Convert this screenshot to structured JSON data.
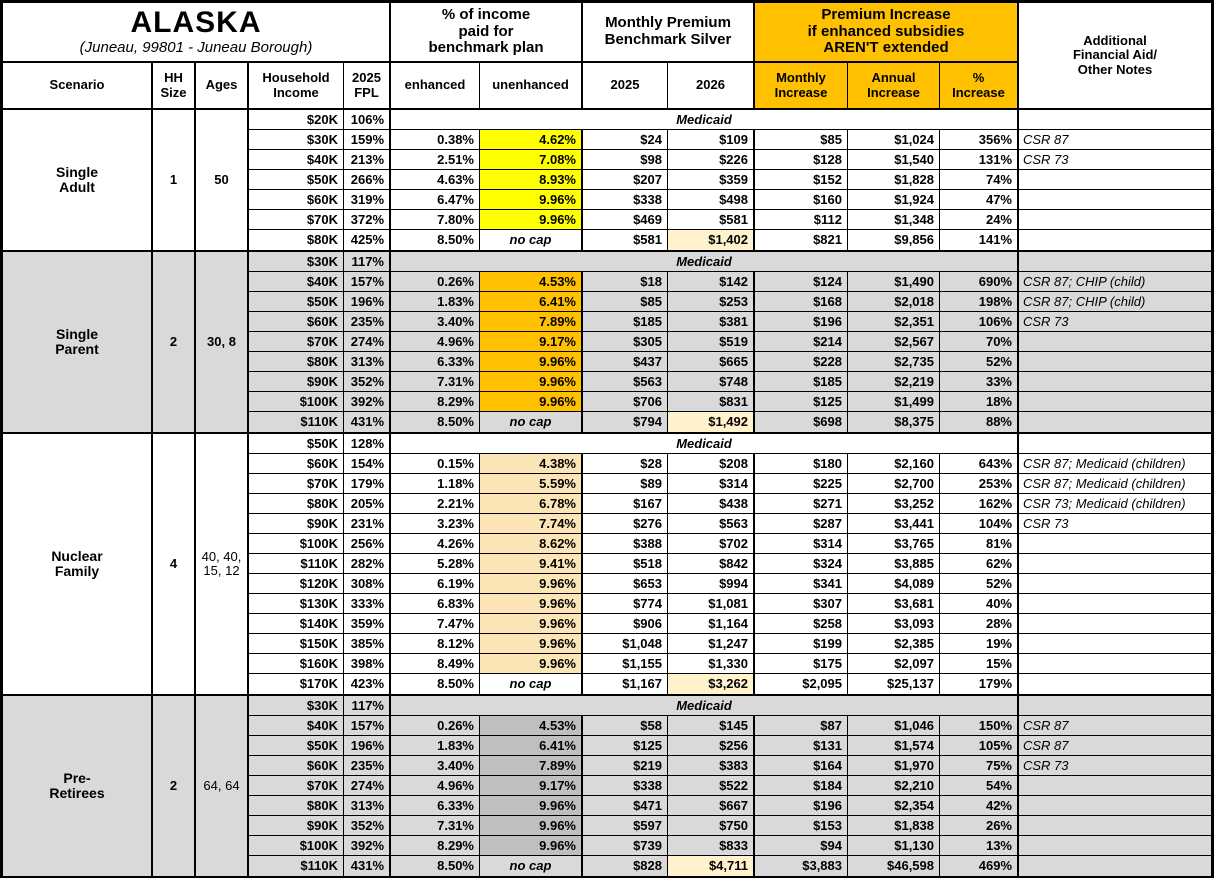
{
  "title": {
    "main": "ALASKA",
    "subtitle": "(Juneau, 99801 - Juneau Borough)"
  },
  "columns": {
    "scenario": "Scenario",
    "hh_size": "HH\nSize",
    "ages": "Ages",
    "household_income": "Household\nIncome",
    "fpl_2025": "2025\nFPL",
    "pct_income_group": "% of income\npaid for\nbenchmark plan",
    "enhanced": "enhanced",
    "unenhanced": "unenhanced",
    "premium_group": "Monthly Premium\nBenchmark Silver",
    "year_2025": "2025",
    "year_2026": "2026",
    "increase_group": "Premium Increase\nif enhanced subsidies\nAREN'T extended",
    "monthly_increase": "Monthly\nIncrease",
    "annual_increase": "Annual\nIncrease",
    "pct_increase": "%\nIncrease",
    "notes": "Additional\nFinancial Aid/\nOther Notes"
  },
  "labels": {
    "medicaid": "Medicaid",
    "no_cap": "no cap"
  },
  "colors": {
    "header_accent": "#FFC000",
    "band_white": "#FFFFFF",
    "band_gray": "#D9D9D9",
    "single_adult_highlight": "#FFFF00",
    "single_parent_highlight": "#FFC000",
    "nuclear_family_highlight": "#FBE5B6",
    "pre_retirees_highlight": "#BFBFBF",
    "no_cap_2026_highlight": "#FFF2CC"
  },
  "sections": [
    {
      "id": "single-adult",
      "scenario": "Single\nAdult",
      "hh_size": "1",
      "ages": "50",
      "ages_bold": true,
      "band": "#FFFFFF",
      "highlight": "#FFFF00",
      "rows": [
        {
          "income": "$20K",
          "fpl": "106%",
          "medicaid": true
        },
        {
          "income": "$30K",
          "fpl": "159%",
          "enhanced": "0.38%",
          "unenhanced": "4.62%",
          "premium_2025": "$24",
          "premium_2026": "$109",
          "monthly_increase": "$85",
          "annual_increase": "$1,024",
          "pct_increase": "356%",
          "notes": "CSR 87"
        },
        {
          "income": "$40K",
          "fpl": "213%",
          "enhanced": "2.51%",
          "unenhanced": "7.08%",
          "premium_2025": "$98",
          "premium_2026": "$226",
          "monthly_increase": "$128",
          "annual_increase": "$1,540",
          "pct_increase": "131%",
          "notes": "CSR 73"
        },
        {
          "income": "$50K",
          "fpl": "266%",
          "enhanced": "4.63%",
          "unenhanced": "8.93%",
          "premium_2025": "$207",
          "premium_2026": "$359",
          "monthly_increase": "$152",
          "annual_increase": "$1,828",
          "pct_increase": "74%",
          "notes": ""
        },
        {
          "income": "$60K",
          "fpl": "319%",
          "enhanced": "6.47%",
          "unenhanced": "9.96%",
          "premium_2025": "$338",
          "premium_2026": "$498",
          "monthly_increase": "$160",
          "annual_increase": "$1,924",
          "pct_increase": "47%",
          "notes": ""
        },
        {
          "income": "$70K",
          "fpl": "372%",
          "enhanced": "7.80%",
          "unenhanced": "9.96%",
          "premium_2025": "$469",
          "premium_2026": "$581",
          "monthly_increase": "$112",
          "annual_increase": "$1,348",
          "pct_increase": "24%",
          "notes": ""
        },
        {
          "income": "$80K",
          "fpl": "425%",
          "enhanced": "8.50%",
          "no_cap": true,
          "premium_2025": "$581",
          "premium_2026": "$1,402",
          "premium_2026_highlight": true,
          "monthly_increase": "$821",
          "annual_increase": "$9,856",
          "pct_increase": "141%",
          "notes": ""
        }
      ]
    },
    {
      "id": "single-parent",
      "scenario": "Single\nParent",
      "hh_size": "2",
      "ages": "30, 8",
      "ages_bold": true,
      "band": "#D9D9D9",
      "highlight": "#FFC000",
      "rows": [
        {
          "income": "$30K",
          "fpl": "117%",
          "medicaid": true
        },
        {
          "income": "$40K",
          "fpl": "157%",
          "enhanced": "0.26%",
          "unenhanced": "4.53%",
          "premium_2025": "$18",
          "premium_2026": "$142",
          "monthly_increase": "$124",
          "annual_increase": "$1,490",
          "pct_increase": "690%",
          "notes": "CSR 87; CHIP (child)"
        },
        {
          "income": "$50K",
          "fpl": "196%",
          "enhanced": "1.83%",
          "unenhanced": "6.41%",
          "premium_2025": "$85",
          "premium_2026": "$253",
          "monthly_increase": "$168",
          "annual_increase": "$2,018",
          "pct_increase": "198%",
          "notes": "CSR 87; CHIP (child)"
        },
        {
          "income": "$60K",
          "fpl": "235%",
          "enhanced": "3.40%",
          "unenhanced": "7.89%",
          "premium_2025": "$185",
          "premium_2026": "$381",
          "monthly_increase": "$196",
          "annual_increase": "$2,351",
          "pct_increase": "106%",
          "notes": "CSR 73"
        },
        {
          "income": "$70K",
          "fpl": "274%",
          "enhanced": "4.96%",
          "unenhanced": "9.17%",
          "premium_2025": "$305",
          "premium_2026": "$519",
          "monthly_increase": "$214",
          "annual_increase": "$2,567",
          "pct_increase": "70%",
          "notes": ""
        },
        {
          "income": "$80K",
          "fpl": "313%",
          "enhanced": "6.33%",
          "unenhanced": "9.96%",
          "premium_2025": "$437",
          "premium_2026": "$665",
          "monthly_increase": "$228",
          "annual_increase": "$2,735",
          "pct_increase": "52%",
          "notes": ""
        },
        {
          "income": "$90K",
          "fpl": "352%",
          "enhanced": "7.31%",
          "unenhanced": "9.96%",
          "premium_2025": "$563",
          "premium_2026": "$748",
          "monthly_increase": "$185",
          "annual_increase": "$2,219",
          "pct_increase": "33%",
          "notes": ""
        },
        {
          "income": "$100K",
          "fpl": "392%",
          "enhanced": "8.29%",
          "unenhanced": "9.96%",
          "premium_2025": "$706",
          "premium_2026": "$831",
          "monthly_increase": "$125",
          "annual_increase": "$1,499",
          "pct_increase": "18%",
          "notes": ""
        },
        {
          "income": "$110K",
          "fpl": "431%",
          "enhanced": "8.50%",
          "no_cap": true,
          "premium_2025": "$794",
          "premium_2026": "$1,492",
          "premium_2026_highlight": true,
          "monthly_increase": "$698",
          "annual_increase": "$8,375",
          "pct_increase": "88%",
          "notes": ""
        }
      ]
    },
    {
      "id": "nuclear-family",
      "scenario": "Nuclear\nFamily",
      "hh_size": "4",
      "ages": "40, 40,\n15, 12",
      "ages_bold": false,
      "band": "#FFFFFF",
      "highlight": "#FBE5B6",
      "rows": [
        {
          "income": "$50K",
          "fpl": "128%",
          "medicaid": true
        },
        {
          "income": "$60K",
          "fpl": "154%",
          "enhanced": "0.15%",
          "unenhanced": "4.38%",
          "premium_2025": "$28",
          "premium_2026": "$208",
          "monthly_increase": "$180",
          "annual_increase": "$2,160",
          "pct_increase": "643%",
          "notes": "CSR 87; Medicaid (children)"
        },
        {
          "income": "$70K",
          "fpl": "179%",
          "enhanced": "1.18%",
          "unenhanced": "5.59%",
          "premium_2025": "$89",
          "premium_2026": "$314",
          "monthly_increase": "$225",
          "annual_increase": "$2,700",
          "pct_increase": "253%",
          "notes": "CSR 87; Medicaid (children)"
        },
        {
          "income": "$80K",
          "fpl": "205%",
          "enhanced": "2.21%",
          "unenhanced": "6.78%",
          "premium_2025": "$167",
          "premium_2026": "$438",
          "monthly_increase": "$271",
          "annual_increase": "$3,252",
          "pct_increase": "162%",
          "notes": "CSR 73; Medicaid (children)"
        },
        {
          "income": "$90K",
          "fpl": "231%",
          "enhanced": "3.23%",
          "unenhanced": "7.74%",
          "premium_2025": "$276",
          "premium_2026": "$563",
          "monthly_increase": "$287",
          "annual_increase": "$3,441",
          "pct_increase": "104%",
          "notes": "CSR 73"
        },
        {
          "income": "$100K",
          "fpl": "256%",
          "enhanced": "4.26%",
          "unenhanced": "8.62%",
          "premium_2025": "$388",
          "premium_2026": "$702",
          "monthly_increase": "$314",
          "annual_increase": "$3,765",
          "pct_increase": "81%",
          "notes": ""
        },
        {
          "income": "$110K",
          "fpl": "282%",
          "enhanced": "5.28%",
          "unenhanced": "9.41%",
          "premium_2025": "$518",
          "premium_2026": "$842",
          "monthly_increase": "$324",
          "annual_increase": "$3,885",
          "pct_increase": "62%",
          "notes": ""
        },
        {
          "income": "$120K",
          "fpl": "308%",
          "enhanced": "6.19%",
          "unenhanced": "9.96%",
          "premium_2025": "$653",
          "premium_2026": "$994",
          "monthly_increase": "$341",
          "annual_increase": "$4,089",
          "pct_increase": "52%",
          "notes": ""
        },
        {
          "income": "$130K",
          "fpl": "333%",
          "enhanced": "6.83%",
          "unenhanced": "9.96%",
          "premium_2025": "$774",
          "premium_2026": "$1,081",
          "monthly_increase": "$307",
          "annual_increase": "$3,681",
          "pct_increase": "40%",
          "notes": ""
        },
        {
          "income": "$140K",
          "fpl": "359%",
          "enhanced": "7.47%",
          "unenhanced": "9.96%",
          "premium_2025": "$906",
          "premium_2026": "$1,164",
          "monthly_increase": "$258",
          "annual_increase": "$3,093",
          "pct_increase": "28%",
          "notes": ""
        },
        {
          "income": "$150K",
          "fpl": "385%",
          "enhanced": "8.12%",
          "unenhanced": "9.96%",
          "premium_2025": "$1,048",
          "premium_2026": "$1,247",
          "monthly_increase": "$199",
          "annual_increase": "$2,385",
          "pct_increase": "19%",
          "notes": ""
        },
        {
          "income": "$160K",
          "fpl": "398%",
          "enhanced": "8.49%",
          "unenhanced": "9.96%",
          "premium_2025": "$1,155",
          "premium_2026": "$1,330",
          "monthly_increase": "$175",
          "annual_increase": "$2,097",
          "pct_increase": "15%",
          "notes": ""
        },
        {
          "income": "$170K",
          "fpl": "423%",
          "enhanced": "8.50%",
          "no_cap": true,
          "premium_2025": "$1,167",
          "premium_2026": "$3,262",
          "premium_2026_highlight": true,
          "monthly_increase": "$2,095",
          "annual_increase": "$25,137",
          "pct_increase": "179%",
          "notes": ""
        }
      ]
    },
    {
      "id": "pre-retirees",
      "scenario": "Pre-\nRetirees",
      "hh_size": "2",
      "ages": "64, 64",
      "ages_bold": false,
      "band": "#D9D9D9",
      "highlight": "#BFBFBF",
      "rows": [
        {
          "income": "$30K",
          "fpl": "117%",
          "medicaid": true
        },
        {
          "income": "$40K",
          "fpl": "157%",
          "enhanced": "0.26%",
          "unenhanced": "4.53%",
          "premium_2025": "$58",
          "premium_2026": "$145",
          "monthly_increase": "$87",
          "annual_increase": "$1,046",
          "pct_increase": "150%",
          "notes": "CSR 87"
        },
        {
          "income": "$50K",
          "fpl": "196%",
          "enhanced": "1.83%",
          "unenhanced": "6.41%",
          "premium_2025": "$125",
          "premium_2026": "$256",
          "monthly_increase": "$131",
          "annual_increase": "$1,574",
          "pct_increase": "105%",
          "notes": "CSR 87"
        },
        {
          "income": "$60K",
          "fpl": "235%",
          "enhanced": "3.40%",
          "unenhanced": "7.89%",
          "premium_2025": "$219",
          "premium_2026": "$383",
          "monthly_increase": "$164",
          "annual_increase": "$1,970",
          "pct_increase": "75%",
          "notes": "CSR 73"
        },
        {
          "income": "$70K",
          "fpl": "274%",
          "enhanced": "4.96%",
          "unenhanced": "9.17%",
          "premium_2025": "$338",
          "premium_2026": "$522",
          "monthly_increase": "$184",
          "annual_increase": "$2,210",
          "pct_increase": "54%",
          "notes": ""
        },
        {
          "income": "$80K",
          "fpl": "313%",
          "enhanced": "6.33%",
          "unenhanced": "9.96%",
          "premium_2025": "$471",
          "premium_2026": "$667",
          "monthly_increase": "$196",
          "annual_increase": "$2,354",
          "pct_increase": "42%",
          "notes": ""
        },
        {
          "income": "$90K",
          "fpl": "352%",
          "enhanced": "7.31%",
          "unenhanced": "9.96%",
          "premium_2025": "$597",
          "premium_2026": "$750",
          "monthly_increase": "$153",
          "annual_increase": "$1,838",
          "pct_increase": "26%",
          "notes": ""
        },
        {
          "income": "$100K",
          "fpl": "392%",
          "enhanced": "8.29%",
          "unenhanced": "9.96%",
          "premium_2025": "$739",
          "premium_2026": "$833",
          "monthly_increase": "$94",
          "annual_increase": "$1,130",
          "pct_increase": "13%",
          "notes": ""
        },
        {
          "income": "$110K",
          "fpl": "431%",
          "enhanced": "8.50%",
          "no_cap": true,
          "premium_2025": "$828",
          "premium_2026": "$4,711",
          "premium_2026_highlight": true,
          "monthly_increase": "$3,883",
          "annual_increase": "$46,598",
          "pct_increase": "469%",
          "notes": ""
        }
      ]
    }
  ]
}
